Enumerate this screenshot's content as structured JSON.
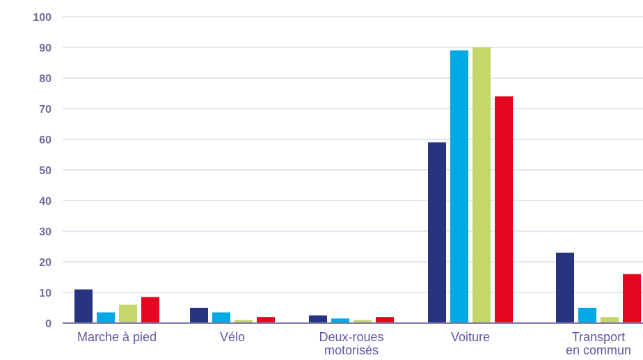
{
  "chart_data": {
    "type": "bar",
    "title": "",
    "xlabel": "",
    "ylabel": "",
    "ylim": [
      0,
      100
    ],
    "yticks": [
      0,
      10,
      20,
      30,
      40,
      50,
      60,
      70,
      80,
      90,
      100
    ],
    "grid": true,
    "legend": "none",
    "categories": [
      [
        "Marche à pied"
      ],
      [
        "Vélo"
      ],
      [
        "Deux-roues",
        "motorisés"
      ],
      [
        "Voiture"
      ],
      [
        "Transport",
        "en commun"
      ]
    ],
    "series": [
      {
        "color": "#283480",
        "values": [
          11,
          5,
          2.5,
          59,
          23
        ]
      },
      {
        "color": "#00a8e6",
        "values": [
          3.5,
          3.5,
          1.5,
          89,
          5
        ]
      },
      {
        "color": "#c6d66a",
        "values": [
          6,
          1,
          1,
          90,
          2
        ]
      },
      {
        "color": "#e30721",
        "values": [
          8.5,
          2,
          2,
          74,
          16
        ]
      }
    ],
    "colors": {
      "grid": "#e6e5f0",
      "axis": "#7a78a8",
      "tick_text": "#6f6b9a",
      "category_text": "#5b57a6"
    }
  }
}
